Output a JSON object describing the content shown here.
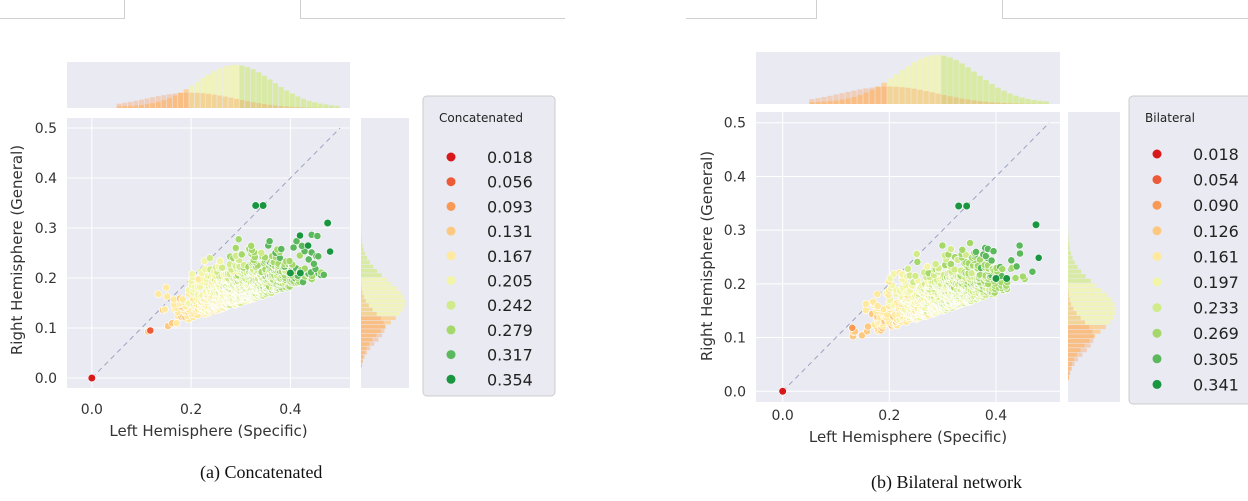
{
  "chart_data": [
    {
      "type": "scatter",
      "caption": "(a) Concatenated",
      "xlabel": "Left Hemisphere (Specific)",
      "ylabel": "Right Hemisphere (General)",
      "xlim": [
        -0.05,
        0.52
      ],
      "ylim": [
        -0.02,
        0.52
      ],
      "xticks": [
        "0.0",
        "0.2",
        "0.4"
      ],
      "yticks": [
        "0.0",
        "0.1",
        "0.2",
        "0.3",
        "0.4",
        "0.5"
      ],
      "diagonal_reference": true,
      "marginal_histograms": true,
      "grid": true,
      "legend": {
        "title": "Concatenated",
        "placement": "right",
        "entries": [
          {
            "label": "0.018",
            "color": "#d7191c"
          },
          {
            "label": "0.056",
            "color": "#ec5a38"
          },
          {
            "label": "0.093",
            "color": "#f89a56"
          },
          {
            "label": "0.131",
            "color": "#fdc980"
          },
          {
            "label": "0.167",
            "color": "#fee99e"
          },
          {
            "label": "0.205",
            "color": "#f2f5a8"
          },
          {
            "label": "0.242",
            "color": "#d1ea8a"
          },
          {
            "label": "0.279",
            "color": "#a5d86a"
          },
          {
            "label": "0.317",
            "color": "#5cb85c"
          },
          {
            "label": "0.354",
            "color": "#1a9641"
          }
        ]
      },
      "annotated_points": [
        {
          "x": 0.0,
          "y": 0.0,
          "value": 0.018
        },
        {
          "x": 0.33,
          "y": 0.345,
          "value": 0.354
        },
        {
          "x": 0.345,
          "y": 0.345,
          "value": 0.354
        },
        {
          "x": 0.475,
          "y": 0.31,
          "value": 0.354
        },
        {
          "x": 0.4,
          "y": 0.21,
          "value": 0.354
        },
        {
          "x": 0.42,
          "y": 0.21,
          "value": 0.354
        }
      ],
      "cloud": {
        "x_range": [
          0.05,
          0.48
        ],
        "y_range": [
          0.04,
          0.33
        ],
        "count": 900,
        "seed": 11
      }
    },
    {
      "type": "scatter",
      "caption": "(b) Bilateral network",
      "xlabel": "Left Hemisphere (Specific)",
      "ylabel": "Right Hemisphere (General)",
      "xlim": [
        -0.05,
        0.52
      ],
      "ylim": [
        -0.02,
        0.52
      ],
      "xticks": [
        "0.0",
        "0.2",
        "0.4"
      ],
      "yticks": [
        "0.0",
        "0.1",
        "0.2",
        "0.3",
        "0.4",
        "0.5"
      ],
      "diagonal_reference": true,
      "marginal_histograms": true,
      "grid": true,
      "legend": {
        "title": "Bilateral",
        "placement": "right",
        "entries": [
          {
            "label": "0.018",
            "color": "#d7191c"
          },
          {
            "label": "0.054",
            "color": "#ec5a38"
          },
          {
            "label": "0.090",
            "color": "#f89a56"
          },
          {
            "label": "0.126",
            "color": "#fdc980"
          },
          {
            "label": "0.161",
            "color": "#fee99e"
          },
          {
            "label": "0.197",
            "color": "#f2f5a8"
          },
          {
            "label": "0.233",
            "color": "#d1ea8a"
          },
          {
            "label": "0.269",
            "color": "#a5d86a"
          },
          {
            "label": "0.305",
            "color": "#5cb85c"
          },
          {
            "label": "0.341",
            "color": "#1a9641"
          }
        ]
      },
      "annotated_points": [
        {
          "x": 0.0,
          "y": 0.0,
          "value": 0.018
        },
        {
          "x": 0.33,
          "y": 0.345,
          "value": 0.341
        },
        {
          "x": 0.345,
          "y": 0.345,
          "value": 0.341
        },
        {
          "x": 0.475,
          "y": 0.31,
          "value": 0.341
        },
        {
          "x": 0.4,
          "y": 0.21,
          "value": 0.341
        },
        {
          "x": 0.42,
          "y": 0.21,
          "value": 0.341
        }
      ],
      "cloud": {
        "x_range": [
          0.05,
          0.48
        ],
        "y_range": [
          0.04,
          0.33
        ],
        "count": 900,
        "seed": 23
      }
    }
  ]
}
